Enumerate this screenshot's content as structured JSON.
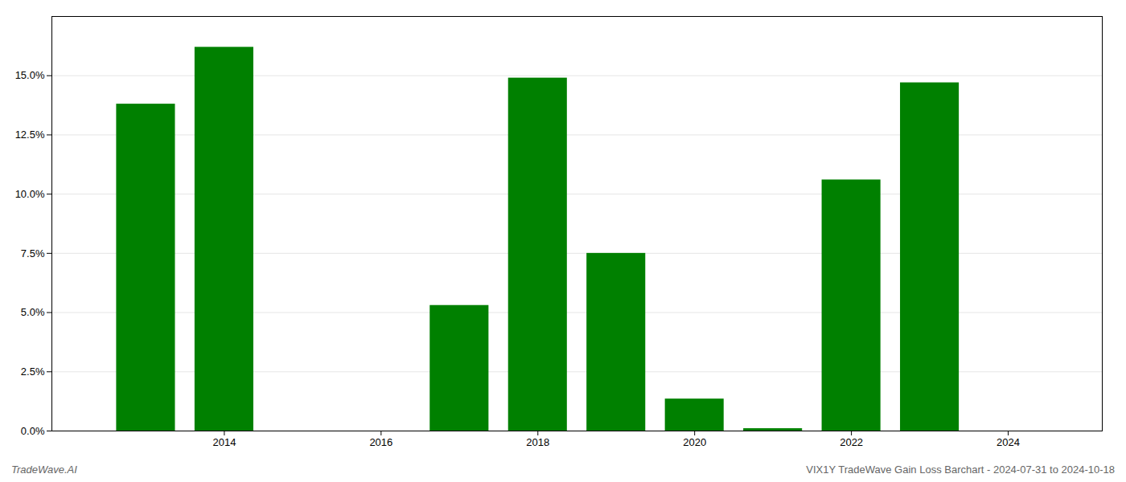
{
  "chart_data": {
    "type": "bar",
    "x": [
      2013,
      2014,
      2017,
      2018,
      2019,
      2020,
      2021,
      2022,
      2023
    ],
    "values": [
      0.138,
      0.162,
      0.053,
      0.149,
      0.075,
      0.0135,
      0.001,
      0.106,
      0.147
    ],
    "color": "#008000",
    "xlim": [
      2011.8,
      2025.2
    ],
    "xticks": [
      2014,
      2016,
      2018,
      2020,
      2022,
      2024
    ],
    "ylim": [
      0,
      0.175
    ],
    "yticks": [
      {
        "value": 0.0,
        "label": "0.0%"
      },
      {
        "value": 0.025,
        "label": "2.5%"
      },
      {
        "value": 0.05,
        "label": "5.0%"
      },
      {
        "value": 0.075,
        "label": "7.5%"
      },
      {
        "value": 0.1,
        "label": "10.0%"
      },
      {
        "value": 0.125,
        "label": "12.5%"
      },
      {
        "value": 0.15,
        "label": "15.0%"
      }
    ],
    "grid": "y",
    "annotations": [
      "TradeWave.AI",
      "VIX1Y TradeWave Gain Loss Barchart - 2024-07-31 to 2024-10-18"
    ]
  }
}
